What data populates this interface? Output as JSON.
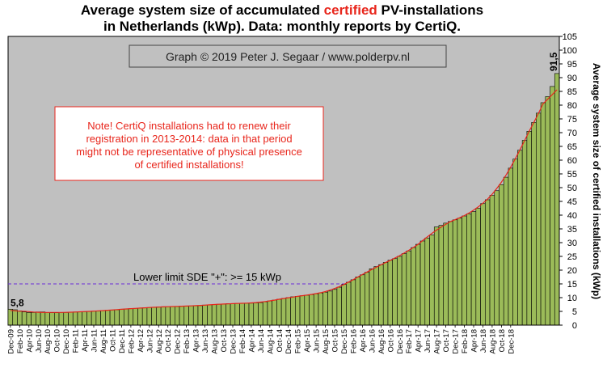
{
  "header": {
    "title_part1": "Average system size of accumulated ",
    "title_accent": "certified",
    "title_part2": " PV-installations",
    "title_line2": "in Netherlands (kWp). Data: monthly reports by CertiQ."
  },
  "credit": "Graph © 2019 Peter J. Segaar / www.polderpv.nl",
  "note": {
    "lines": [
      "Note! CertiQ installations had to renew their",
      "registration in 2013-2014: data in that period",
      "might not be representative of physical presence",
      "of certified installations!"
    ]
  },
  "limit_line": {
    "label": "Lower limit  SDE \"+\":    >= 15 kWp",
    "value": 15,
    "color": "#6a2bd9"
  },
  "first_label": "5,8",
  "last_label": "91,5",
  "colors": {
    "plot_bg": "#c0c0c0",
    "bar": "#9bbb59",
    "trend": "#e8261c",
    "accent": "#e8261c"
  },
  "chart_data": {
    "type": "bar",
    "title": "Average system size of accumulated certified PV-installations in Netherlands (kWp). Data: monthly reports by CertiQ.",
    "ylabel": "Average system size of certified installations (kWp)",
    "xlabel": "",
    "ylim": [
      0,
      105
    ],
    "yticks": [
      0,
      5,
      10,
      15,
      20,
      25,
      30,
      35,
      40,
      45,
      50,
      55,
      60,
      65,
      70,
      75,
      80,
      85,
      90,
      95,
      100,
      105
    ],
    "y_axis_side": "right",
    "grid": false,
    "trendline": true,
    "tick_labels": [
      "Dec-09",
      "Feb-10",
      "Apr-10",
      "Jun-10",
      "Aug-10",
      "Oct-10",
      "Dec-10",
      "Feb-11",
      "Apr-11",
      "Jun-11",
      "Aug-11",
      "Oct-11",
      "Dec-11",
      "Feb-12",
      "Apr-12",
      "Jun-12",
      "Aug-12",
      "Oct-12",
      "Dec-12",
      "Feb-13",
      "Apr-13",
      "Jun-13",
      "Aug-13",
      "Oct-13",
      "Dec-13",
      "Feb-14",
      "Apr-14",
      "Jun-14",
      "Aug-14",
      "Oct-14",
      "Dec-14",
      "Feb-15",
      "Apr-15",
      "Jun-15",
      "Aug-15",
      "Oct-15",
      "Dec-15",
      "Feb-16",
      "Apr-16",
      "Jun-16",
      "Aug-16",
      "Oct-16",
      "Dec-16",
      "Feb-17",
      "Apr-17",
      "Jun-17",
      "Aug-17",
      "Oct-17",
      "Dec-17",
      "Feb-18",
      "Apr-18",
      "Jun-18",
      "Aug-18",
      "Oct-18",
      "Dec-18"
    ],
    "values": [
      5.8,
      5.6,
      5.2,
      4.8,
      4.6,
      4.6,
      4.8,
      4.8,
      4.6,
      4.5,
      4.5,
      4.6,
      4.6,
      4.7,
      4.8,
      4.8,
      4.9,
      5.0,
      5.1,
      5.2,
      5.3,
      5.4,
      5.5,
      5.6,
      5.8,
      5.9,
      6.0,
      6.1,
      6.2,
      6.3,
      6.4,
      6.5,
      6.6,
      6.7,
      6.7,
      6.8,
      6.8,
      6.9,
      6.9,
      7.0,
      7.0,
      7.1,
      7.3,
      7.4,
      7.5,
      7.6,
      7.7,
      7.8,
      7.8,
      7.9,
      7.9,
      8.0,
      8.0,
      8.1,
      8.2,
      8.5,
      8.8,
      9.1,
      9.4,
      9.7,
      10.0,
      10.3,
      10.5,
      10.7,
      10.9,
      11.1,
      11.4,
      11.7,
      12.0,
      12.4,
      13.0,
      13.8,
      14.8,
      15.6,
      16.5,
      17.5,
      18.3,
      19.2,
      20.5,
      21.3,
      22.0,
      22.8,
      23.6,
      24.2,
      25.0,
      26.0,
      27.0,
      28.2,
      29.4,
      30.6,
      31.7,
      32.8,
      35.7,
      36.3,
      37.1,
      37.7,
      38.3,
      38.9,
      39.7,
      40.5,
      41.3,
      42.5,
      44.2,
      45.6,
      47.2,
      48.9,
      51.1,
      53.8,
      57.1,
      60.4,
      63.6,
      67.2,
      70.5,
      73.7,
      77.1,
      80.9,
      83.1,
      86.8,
      91.5
    ]
  }
}
